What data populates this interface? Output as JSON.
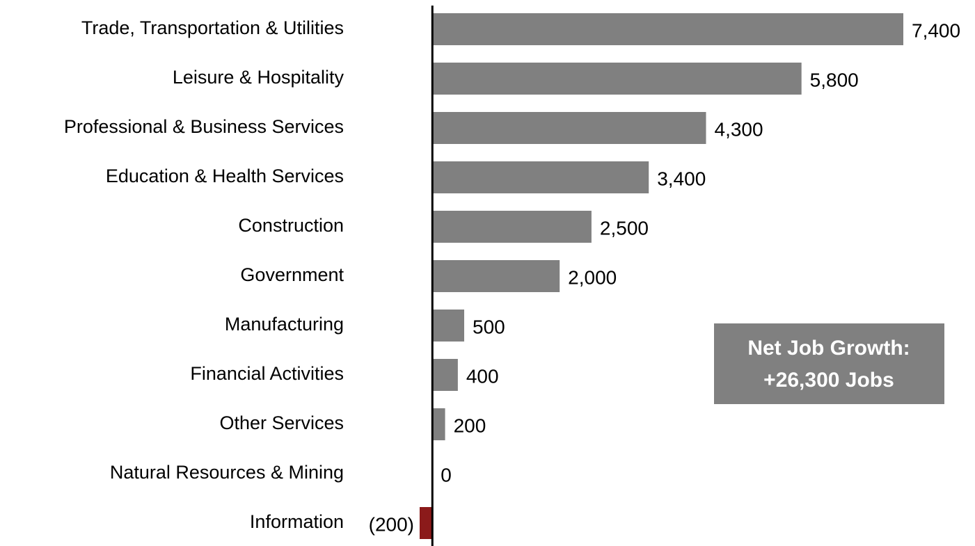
{
  "chart_data": {
    "type": "barh",
    "categories": [
      "Trade, Transportation & Utilities",
      "Leisure & Hospitality",
      "Professional & Business Services",
      "Education & Health Services",
      "Construction",
      "Government",
      "Manufacturing",
      "Financial Activities",
      "Other Services",
      "Natural Resources & Mining",
      "Information"
    ],
    "values": [
      7400,
      5800,
      4300,
      3400,
      2500,
      2000,
      500,
      400,
      200,
      0,
      -200
    ],
    "value_labels": [
      "7,400",
      "5,800",
      "4,300",
      "3,400",
      "2,500",
      "2,000",
      "500",
      "400",
      "200",
      "0",
      "(200)"
    ],
    "color": "#808080",
    "negative_color": "#8b1a1a",
    "xlim": [
      -200,
      7400
    ],
    "annotation": [
      "Net Job Growth:",
      "+26,300 Jobs"
    ]
  }
}
